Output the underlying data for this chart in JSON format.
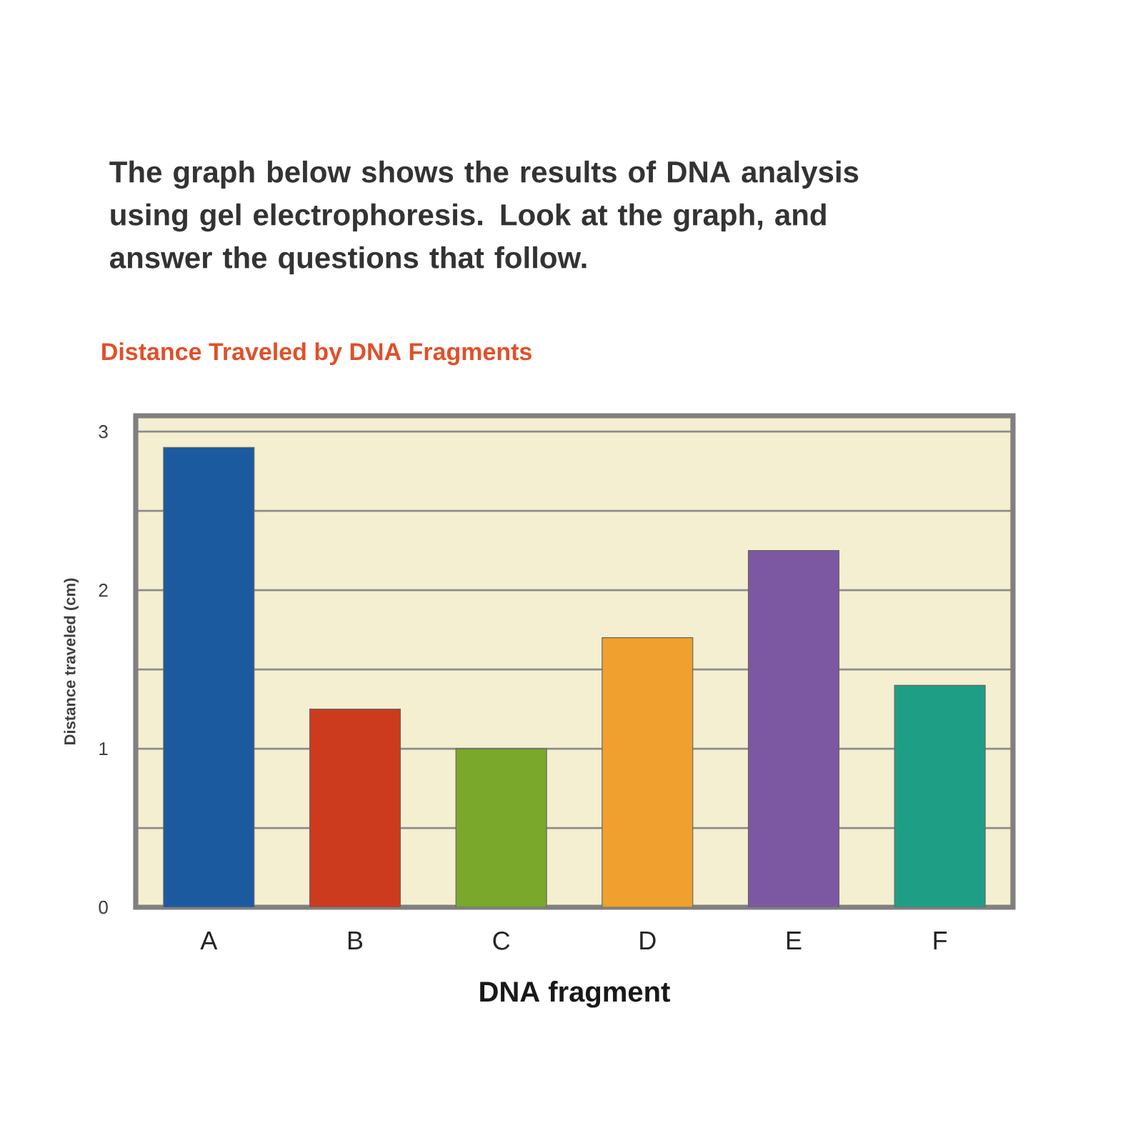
{
  "chart_data": {
    "type": "bar",
    "title": "Distance Traveled by DNA Fragments",
    "annotations": [
      "The graph below shows the results of DNA analysis using gel electrophoresis. Look at the graph, and answer the questions that follow."
    ],
    "xlabel": "DNA fragment",
    "ylabel": "Distance traveled (cm)",
    "categories": [
      "A",
      "B",
      "C",
      "D",
      "E",
      "F"
    ],
    "values": [
      2.9,
      1.25,
      1.0,
      1.7,
      2.25,
      1.4
    ],
    "colors": [
      "#1c5aa0",
      "#cc3b1e",
      "#79a82a",
      "#f0a02e",
      "#7c58a3",
      "#1f9e86"
    ],
    "ylim": [
      0,
      3.1
    ],
    "yticks": [
      0,
      {
        "value": 0.5,
        "label": null
      },
      1,
      {
        "value": 1.5,
        "label": null
      },
      2,
      {
        "value": 2.5,
        "label": null
      },
      3
    ],
    "grid": "y"
  }
}
